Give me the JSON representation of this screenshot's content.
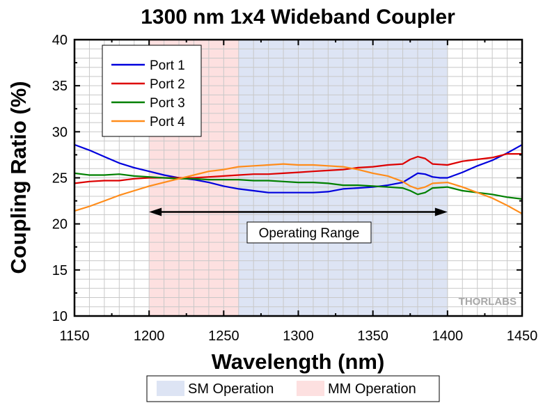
{
  "chart_data": {
    "type": "line",
    "title": "1300 nm 1x4 Wideband Coupler",
    "xlabel": "Wavelength (nm)",
    "ylabel": "Coupling Ratio (%)",
    "xlim": [
      1150,
      1450
    ],
    "ylim": [
      10,
      40
    ],
    "xticks": [
      1150,
      1200,
      1250,
      1300,
      1350,
      1400,
      1450
    ],
    "yticks": [
      10,
      15,
      20,
      25,
      30,
      35,
      40
    ],
    "grid": true,
    "legend_position": "top-left",
    "series": [
      {
        "name": "Port 1",
        "color": "#0000dd",
        "points": [
          [
            1150,
            28.6
          ],
          [
            1160,
            28.0
          ],
          [
            1170,
            27.3
          ],
          [
            1180,
            26.6
          ],
          [
            1190,
            26.1
          ],
          [
            1200,
            25.7
          ],
          [
            1210,
            25.3
          ],
          [
            1220,
            25.0
          ],
          [
            1230,
            24.8
          ],
          [
            1240,
            24.5
          ],
          [
            1250,
            24.1
          ],
          [
            1260,
            23.8
          ],
          [
            1270,
            23.6
          ],
          [
            1280,
            23.4
          ],
          [
            1290,
            23.4
          ],
          [
            1300,
            23.4
          ],
          [
            1310,
            23.4
          ],
          [
            1320,
            23.5
          ],
          [
            1330,
            23.8
          ],
          [
            1340,
            23.9
          ],
          [
            1350,
            24.0
          ],
          [
            1360,
            24.2
          ],
          [
            1370,
            24.5
          ],
          [
            1375,
            25.0
          ],
          [
            1380,
            25.5
          ],
          [
            1385,
            25.4
          ],
          [
            1390,
            25.1
          ],
          [
            1395,
            25.0
          ],
          [
            1400,
            25.0
          ],
          [
            1410,
            25.6
          ],
          [
            1420,
            26.3
          ],
          [
            1430,
            26.9
          ],
          [
            1440,
            27.7
          ],
          [
            1450,
            28.6
          ]
        ]
      },
      {
        "name": "Port 2",
        "color": "#dd0000",
        "points": [
          [
            1150,
            24.4
          ],
          [
            1160,
            24.6
          ],
          [
            1170,
            24.7
          ],
          [
            1180,
            24.7
          ],
          [
            1190,
            24.9
          ],
          [
            1200,
            25.0
          ],
          [
            1210,
            25.0
          ],
          [
            1220,
            25.0
          ],
          [
            1230,
            25.0
          ],
          [
            1240,
            25.1
          ],
          [
            1250,
            25.2
          ],
          [
            1260,
            25.3
          ],
          [
            1270,
            25.4
          ],
          [
            1280,
            25.4
          ],
          [
            1290,
            25.5
          ],
          [
            1300,
            25.6
          ],
          [
            1310,
            25.7
          ],
          [
            1320,
            25.8
          ],
          [
            1330,
            25.9
          ],
          [
            1340,
            26.1
          ],
          [
            1350,
            26.2
          ],
          [
            1360,
            26.4
          ],
          [
            1370,
            26.5
          ],
          [
            1375,
            27.0
          ],
          [
            1380,
            27.3
          ],
          [
            1385,
            27.1
          ],
          [
            1390,
            26.5
          ],
          [
            1400,
            26.4
          ],
          [
            1410,
            26.8
          ],
          [
            1420,
            27.0
          ],
          [
            1430,
            27.2
          ],
          [
            1440,
            27.6
          ],
          [
            1450,
            27.6
          ]
        ]
      },
      {
        "name": "Port 3",
        "color": "#008000",
        "points": [
          [
            1150,
            25.5
          ],
          [
            1160,
            25.3
          ],
          [
            1170,
            25.3
          ],
          [
            1180,
            25.4
          ],
          [
            1190,
            25.2
          ],
          [
            1200,
            25.1
          ],
          [
            1210,
            25.0
          ],
          [
            1220,
            24.9
          ],
          [
            1230,
            24.9
          ],
          [
            1240,
            24.8
          ],
          [
            1250,
            24.8
          ],
          [
            1260,
            24.8
          ],
          [
            1270,
            24.7
          ],
          [
            1280,
            24.7
          ],
          [
            1290,
            24.6
          ],
          [
            1300,
            24.5
          ],
          [
            1310,
            24.5
          ],
          [
            1320,
            24.4
          ],
          [
            1330,
            24.2
          ],
          [
            1340,
            24.2
          ],
          [
            1350,
            24.1
          ],
          [
            1360,
            24.0
          ],
          [
            1370,
            23.9
          ],
          [
            1375,
            23.6
          ],
          [
            1380,
            23.2
          ],
          [
            1385,
            23.4
          ],
          [
            1390,
            23.9
          ],
          [
            1400,
            24.0
          ],
          [
            1410,
            23.6
          ],
          [
            1420,
            23.4
          ],
          [
            1430,
            23.2
          ],
          [
            1440,
            22.9
          ],
          [
            1450,
            22.7
          ]
        ]
      },
      {
        "name": "Port 4",
        "color": "#ff8c1a",
        "points": [
          [
            1150,
            21.4
          ],
          [
            1160,
            21.9
          ],
          [
            1170,
            22.5
          ],
          [
            1180,
            23.1
          ],
          [
            1190,
            23.6
          ],
          [
            1200,
            24.1
          ],
          [
            1210,
            24.5
          ],
          [
            1220,
            24.9
          ],
          [
            1230,
            25.3
          ],
          [
            1240,
            25.7
          ],
          [
            1250,
            25.9
          ],
          [
            1260,
            26.2
          ],
          [
            1270,
            26.3
          ],
          [
            1280,
            26.4
          ],
          [
            1290,
            26.5
          ],
          [
            1300,
            26.4
          ],
          [
            1310,
            26.4
          ],
          [
            1320,
            26.3
          ],
          [
            1330,
            26.2
          ],
          [
            1340,
            25.9
          ],
          [
            1350,
            25.5
          ],
          [
            1360,
            25.2
          ],
          [
            1370,
            24.6
          ],
          [
            1375,
            24.1
          ],
          [
            1380,
            23.8
          ],
          [
            1385,
            24.0
          ],
          [
            1390,
            24.4
          ],
          [
            1400,
            24.5
          ],
          [
            1410,
            24.0
          ],
          [
            1420,
            23.4
          ],
          [
            1430,
            22.8
          ],
          [
            1440,
            22.0
          ],
          [
            1450,
            21.1
          ]
        ]
      }
    ],
    "regions": [
      {
        "name": "MM Operation",
        "x": [
          1200,
          1260
        ],
        "color": "#fde0e0"
      },
      {
        "name": "SM Operation",
        "x": [
          1260,
          1400
        ],
        "color": "#dde4f4"
      }
    ],
    "annotation": {
      "text": "Operating Range",
      "x_from": 1200,
      "x_to": 1400,
      "y": 21.3
    },
    "watermark": "THORLABS"
  }
}
